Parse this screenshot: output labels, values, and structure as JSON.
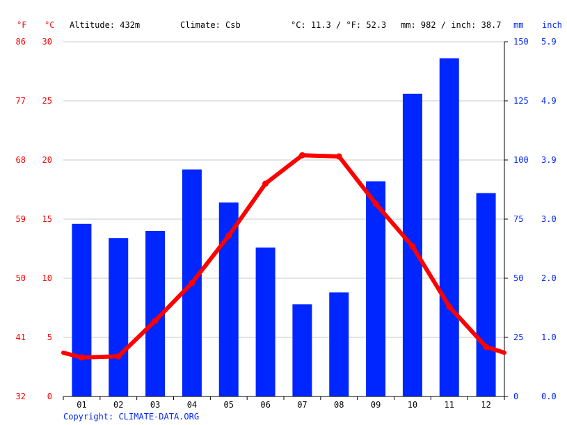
{
  "chart_data": {
    "type": "bar+line",
    "header": {
      "unit_f": "°F",
      "unit_c": "°C",
      "altitude": "Altitude: 432m",
      "climate": "Climate: Csb",
      "avg_temp": "°C: 11.3 / °F: 52.3",
      "precip_total": "mm: 982 / inch: 38.7",
      "unit_mm": "mm",
      "unit_inch": "inch"
    },
    "categories": [
      "01",
      "02",
      "03",
      "04",
      "05",
      "06",
      "07",
      "08",
      "09",
      "10",
      "11",
      "12"
    ],
    "temperature_axis": {
      "c_ticks": [
        0,
        5,
        10,
        15,
        20,
        25,
        30
      ],
      "f_ticks": [
        32,
        41,
        50,
        59,
        68,
        77,
        86
      ],
      "ylim": [
        0,
        30
      ]
    },
    "precipitation_axis": {
      "mm_ticks": [
        0,
        25,
        50,
        75,
        100,
        125,
        150
      ],
      "inch_ticks": [
        "0.0",
        "1.0",
        "2.0",
        "3.0",
        "3.9",
        "4.9",
        "5.9"
      ],
      "ylim": [
        0,
        150
      ]
    },
    "series": [
      {
        "kind": "bar",
        "color": "#0026ff",
        "values": [
          73,
          67,
          70,
          96,
          82,
          63,
          39,
          44,
          91,
          128,
          143,
          86
        ]
      },
      {
        "kind": "line",
        "color": "#ff0000",
        "values": [
          3.3,
          3.4,
          6.4,
          9.6,
          13.6,
          18.0,
          20.4,
          20.3,
          16.3,
          12.7,
          7.6,
          4.2
        ],
        "edge_values": [
          3.7,
          3.7
        ]
      }
    ],
    "grid": true,
    "copyright": "Copyright: CLIMATE-DATA.ORG"
  },
  "colors": {
    "temp": "#ff0000",
    "precip": "#0026ff",
    "grid": "#c8c8c8",
    "axis": "#000000",
    "header_text": "#000000",
    "copyright": "#0026ff"
  }
}
